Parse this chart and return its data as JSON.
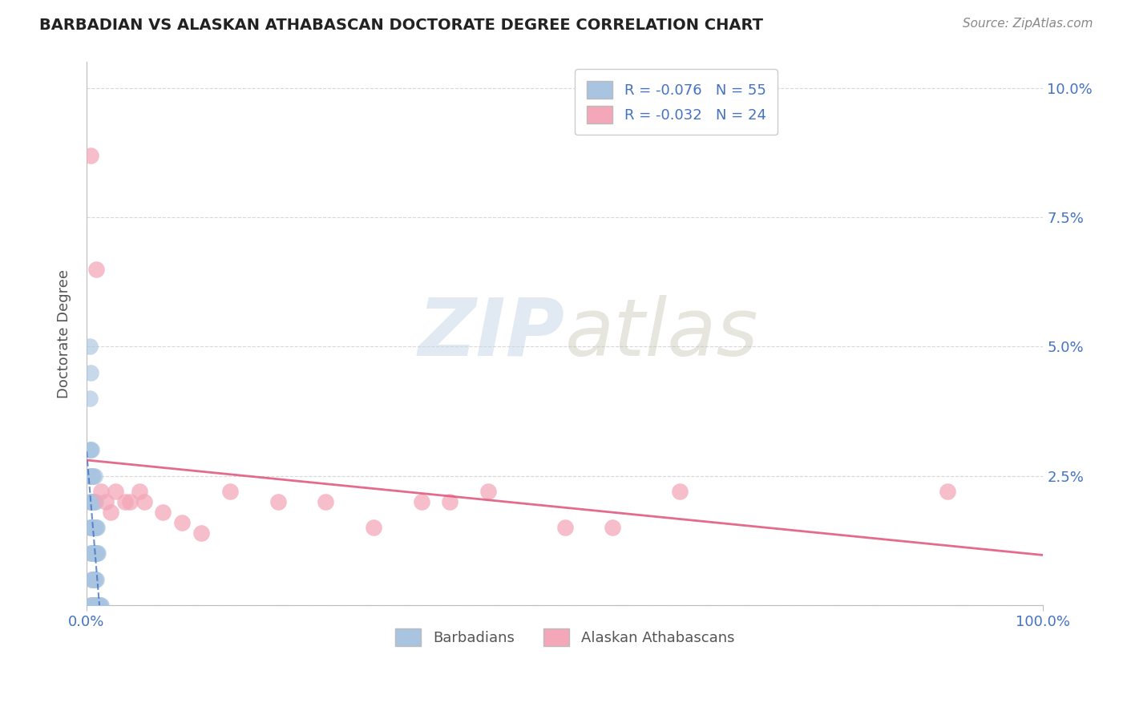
{
  "title": "BARBADIAN VS ALASKAN ATHABASCAN DOCTORATE DEGREE CORRELATION CHART",
  "source": "Source: ZipAtlas.com",
  "xlabel_barbadian": "Barbadians",
  "xlabel_athabascan": "Alaskan Athabascans",
  "ylabel": "Doctorate Degree",
  "r_barbadian": -0.076,
  "n_barbadian": 55,
  "r_athabascan": -0.032,
  "n_athabascan": 24,
  "xlim": [
    0.0,
    1.0
  ],
  "ylim": [
    0.0,
    0.105
  ],
  "xtick_labels": [
    "0.0%",
    "100.0%"
  ],
  "ytick_labels": [
    "",
    "2.5%",
    "5.0%",
    "7.5%",
    "10.0%"
  ],
  "color_barbadian": "#a8c4e0",
  "color_barbadian_dark": "#5b8cc8",
  "color_athabascan": "#f4a7b9",
  "color_trend_barbadian": "#4472c4",
  "color_trend_athabascan": "#e05c80",
  "background_color": "#ffffff",
  "grid_color": "#c8c8c8",
  "watermark_zip": "ZIP",
  "watermark_atlas": "atlas",
  "barbadian_x": [
    0.004,
    0.005,
    0.006,
    0.007,
    0.008,
    0.009,
    0.01,
    0.011,
    0.012,
    0.013,
    0.014,
    0.015,
    0.005,
    0.006,
    0.007,
    0.008,
    0.009,
    0.01,
    0.004,
    0.005,
    0.006,
    0.007,
    0.008,
    0.009,
    0.01,
    0.011,
    0.012,
    0.003,
    0.004,
    0.005,
    0.006,
    0.007,
    0.008,
    0.009,
    0.01,
    0.011,
    0.003,
    0.004,
    0.005,
    0.006,
    0.007,
    0.008,
    0.009,
    0.003,
    0.004,
    0.005,
    0.006,
    0.007,
    0.008,
    0.003,
    0.004,
    0.005,
    0.003,
    0.004,
    0.003
  ],
  "barbadian_y": [
    0.0,
    0.0,
    0.0,
    0.0,
    0.0,
    0.0,
    0.0,
    0.0,
    0.0,
    0.0,
    0.0,
    0.0,
    0.005,
    0.005,
    0.005,
    0.005,
    0.005,
    0.005,
    0.01,
    0.01,
    0.01,
    0.01,
    0.01,
    0.01,
    0.01,
    0.01,
    0.01,
    0.015,
    0.015,
    0.015,
    0.015,
    0.015,
    0.015,
    0.015,
    0.015,
    0.015,
    0.02,
    0.02,
    0.02,
    0.02,
    0.02,
    0.02,
    0.02,
    0.025,
    0.025,
    0.025,
    0.025,
    0.025,
    0.025,
    0.03,
    0.03,
    0.03,
    0.04,
    0.045,
    0.05
  ],
  "athabascan_x": [
    0.004,
    0.01,
    0.015,
    0.02,
    0.025,
    0.04,
    0.055,
    0.06,
    0.08,
    0.1,
    0.12,
    0.15,
    0.2,
    0.25,
    0.3,
    0.35,
    0.38,
    0.42,
    0.5,
    0.55,
    0.62,
    0.9,
    0.03,
    0.045
  ],
  "athabascan_y": [
    0.087,
    0.065,
    0.022,
    0.02,
    0.018,
    0.02,
    0.022,
    0.02,
    0.018,
    0.016,
    0.014,
    0.022,
    0.02,
    0.02,
    0.015,
    0.02,
    0.02,
    0.022,
    0.015,
    0.015,
    0.022,
    0.022,
    0.022,
    0.02
  ]
}
